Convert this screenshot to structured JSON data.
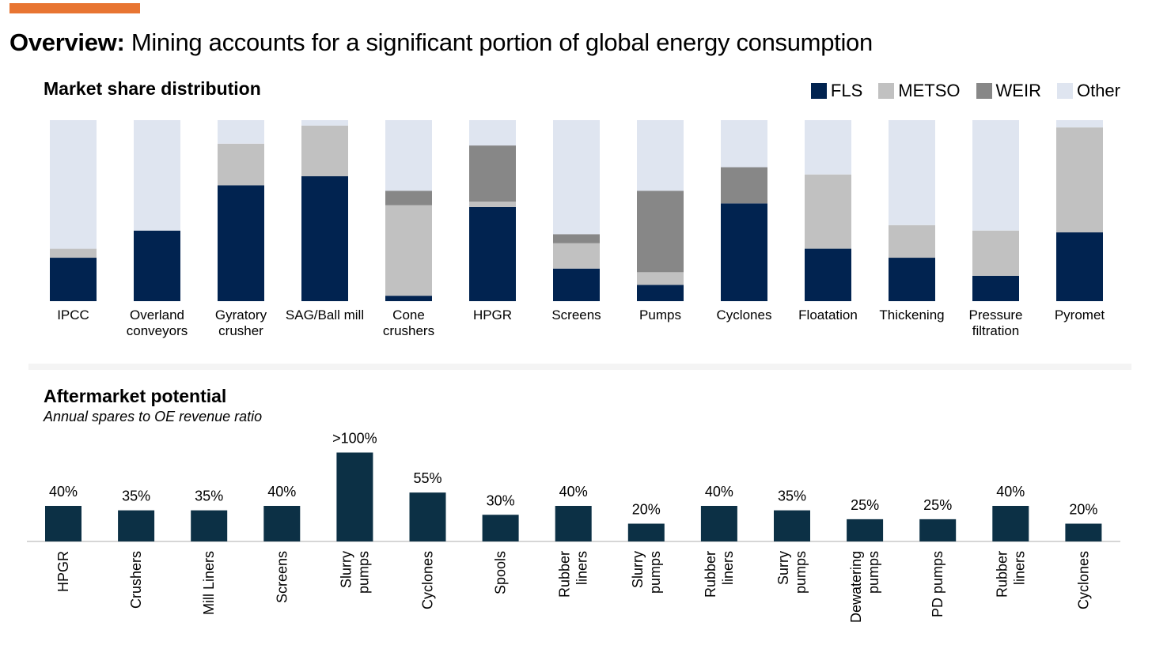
{
  "header": {
    "title_bold": "Overview:",
    "title_rest": " Mining accounts for a significant portion of global energy consumption",
    "accent_color": "#E87532"
  },
  "chart_data": [
    {
      "type": "bar",
      "stacked": true,
      "title": "Market share distribution",
      "legend_position": "top-right",
      "ylim": [
        0,
        100
      ],
      "grid": false,
      "categories": [
        "IPCC",
        "Overland\nconveyors",
        "Gyratory\ncrusher",
        "SAG/Ball mill",
        "Cone\ncrushers",
        "HPGR",
        "Screens",
        "Pumps",
        "Cyclones",
        "Floatation",
        "Thickening",
        "Pressure\nfiltration",
        "Pyromet"
      ],
      "series": [
        {
          "name": "FLS",
          "color": "#012350",
          "values": [
            24,
            39,
            64,
            69,
            3,
            52,
            18,
            9,
            54,
            29,
            24,
            14,
            38
          ]
        },
        {
          "name": "METSO",
          "color": "#C1C1C1",
          "values": [
            5,
            0,
            23,
            28,
            50,
            3,
            14,
            7,
            0,
            41,
            18,
            25,
            58
          ]
        },
        {
          "name": "WEIR",
          "color": "#878787",
          "values": [
            0,
            0,
            0,
            0,
            8,
            31,
            5,
            45,
            20,
            0,
            0,
            0,
            0
          ]
        },
        {
          "name": "Other",
          "color": "#DFE5F0",
          "values": [
            71,
            61,
            13,
            3,
            39,
            14,
            63,
            39,
            26,
            30,
            58,
            61,
            4
          ]
        }
      ]
    },
    {
      "type": "bar",
      "title": "Aftermarket potential",
      "subtitle": "Annual spares to OE revenue ratio",
      "bar_color": "#0C3045",
      "grid": false,
      "categories": [
        "HPGR",
        "Crushers",
        "Mill Liners",
        "Screens",
        "Slurry\npumps",
        "Cyclones",
        "Spools",
        "Rubber\nliners",
        "Slurry\npumps",
        "Rubber\nliners",
        "Surry\npumps",
        "Dewatering\npumps",
        "PD pumps",
        "Rubber\nliners",
        "Cyclones"
      ],
      "values": [
        40,
        35,
        35,
        40,
        100,
        55,
        30,
        40,
        20,
        40,
        35,
        25,
        25,
        40,
        20
      ],
      "data_labels": [
        "40%",
        "35%",
        "35%",
        "40%",
        ">100%",
        "55%",
        "30%",
        "40%",
        "20%",
        "40%",
        "35%",
        "25%",
        "25%",
        "40%",
        "20%"
      ]
    }
  ]
}
